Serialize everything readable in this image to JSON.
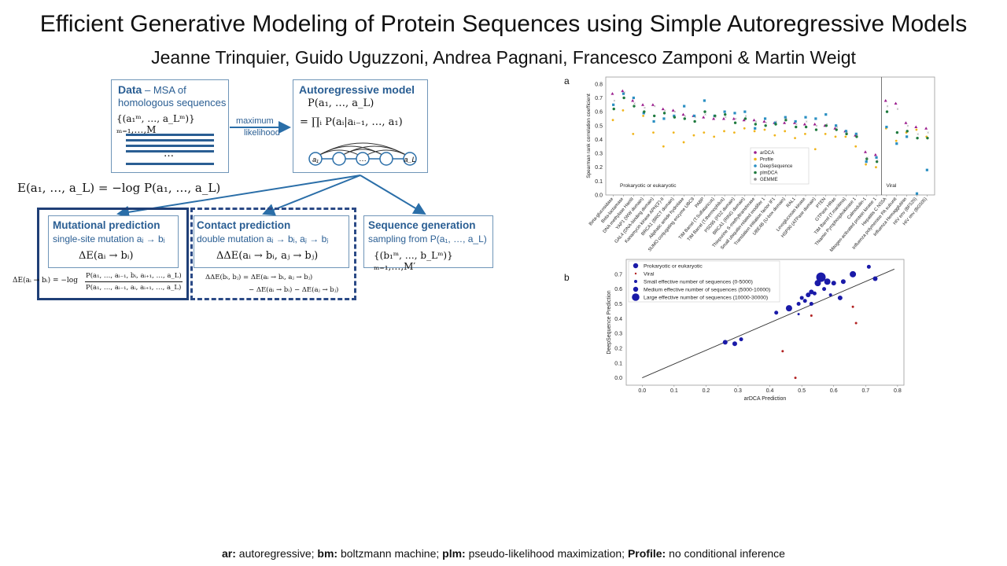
{
  "title": "Efficient Generative Modeling of Protein Sequences using Simple Autoregressive Models",
  "authors": "Jeanne Trinquier, Guido Uguzzoni, Andrea Pagnani, Francesco Zamponi & Martin Weigt",
  "diagram": {
    "data_box": {
      "title": "Data",
      "subtitle": "– MSA of",
      "line2": "homologous sequences",
      "formula": "{(a₁ᵐ, …, a_Lᵐ)}ₘ₌₁,…,M",
      "dots": "…"
    },
    "arrow_label_1": "maximum",
    "arrow_label_2": "likelihood",
    "ar_box": {
      "title": "Autoregressive model",
      "formula1": "P(a₁, …, a_L)",
      "formula2": "= ∏ᵢ P(aᵢ|aᵢ₋₁, …, a₁)",
      "node_first": "a₁",
      "node_last": "a_L",
      "node_dots": "…"
    },
    "energy": "E(a₁, …, a_L) = −log P(a₁, …, a_L)",
    "mut_box": {
      "title": "Mutational prediction",
      "subtitle": "single-site mutation aᵢ → bᵢ",
      "formula": "ΔE(aᵢ → bᵢ)",
      "eq_lhs": "ΔE(aᵢ → bᵢ) = −log",
      "eq_num": "P(a₁, …, aᵢ₋₁, bᵢ, aᵢ₊₁, …, a_L)",
      "eq_den": "P(a₁, …, aᵢ₋₁, aᵢ, aᵢ₊₁, …, a_L)"
    },
    "contact_box": {
      "title": "Contact prediction",
      "subtitle": "double mutation aᵢ → bᵢ, aⱼ → bⱼ",
      "formula": "ΔΔE(aᵢ → bᵢ, aⱼ → bⱼ)",
      "eq1": "ΔΔE(bᵢ, bⱼ) = ΔE(aᵢ → bᵢ, aⱼ → bⱼ)",
      "eq2": "− ΔE(aᵢ → bᵢ) − ΔE(aⱼ → bⱼ)"
    },
    "gen_box": {
      "title": "Sequence generation",
      "subtitle": "sampling from P(a₁, …, a_L)",
      "formula": "{(b₁ᵐ, …, b_Lᵐ)}ₘ₌₁,…,M′"
    }
  },
  "panel_a_letter": "a",
  "panel_b_letter": "b",
  "footer": {
    "k1": "ar:",
    "v1": " autoregressive; ",
    "k2": "bm:",
    "v2": " boltzmann machine; ",
    "k3": "plm:",
    "v3": " pseudo-likelihood maximization; ",
    "k4": "Profile:",
    "v4": " no conditional inference"
  },
  "chart_data": [
    {
      "type": "scatter",
      "ylabel": "Spearman rank correlation coefficient",
      "ylim": [
        0,
        0.85
      ],
      "yticks": [
        "0.0",
        "0.1",
        "0.2",
        "0.3",
        "0.4",
        "0.5",
        "0.6",
        "0.7",
        "0.8"
      ],
      "region_labels": [
        "Prokaryotic or eukaryotic",
        "Viral"
      ],
      "categories": [
        "Beta-glucosidase",
        "Beta-lactamase",
        "DNA methylase HaeIII",
        "YAP1 (WW domain)",
        "GAL4 (DNA-binding domain)",
        "Kanamycin kinase APH(3')-II",
        "BRCA1 (BRCT domain)",
        "Aliphatic amide hydrolase",
        "SUMO conjugating enzyme UBC9",
        "PABP",
        "TIM Barrel (T.Sulfataricus)",
        "TIM Barrel (T.thermophilus)",
        "PSD95 (PDZ domain)",
        "BRCA1 (RING domain)",
        "Thiopurine S-methyltransferase",
        "Small ubiquitin-related modifier 1",
        "Translation initiation factor IF1",
        "UBE4B (U-box domain)",
        "RAL1",
        "Levoglucosan kinase",
        "HSP90 (ATPase domain)",
        "PTEN",
        "GTPase HRas",
        "TIM Barrel (T.maritima)",
        "Thiamin Pyrophosphokinase 1",
        "Calmodulin-1",
        "Mitogen-activated protein kinase 1",
        "Hepatitis C NS5A",
        "Influenza polymerase PA subunit",
        "Influenza Hemagglutinin",
        "HIV env (BF520)",
        "HIV env (BG505)"
      ],
      "series": [
        {
          "name": "arDCA",
          "color": "#9b1d8e",
          "values": [
            0.73,
            0.75,
            0.68,
            0.65,
            0.65,
            0.62,
            0.61,
            0.58,
            0.57,
            0.56,
            0.55,
            0.55,
            0.55,
            0.54,
            0.54,
            0.53,
            0.52,
            0.52,
            0.52,
            0.51,
            0.51,
            0.5,
            0.48,
            0.46,
            0.43,
            0.31,
            0.29,
            0.68,
            0.66,
            0.52,
            0.49,
            0.48
          ]
        },
        {
          "name": "Profile",
          "color": "#f0b51c",
          "values": [
            0.54,
            0.61,
            0.44,
            0.57,
            0.45,
            0.35,
            0.45,
            0.38,
            0.43,
            0.45,
            0.42,
            0.46,
            0.45,
            0.48,
            0.46,
            0.47,
            0.43,
            0.46,
            0.41,
            0.44,
            0.33,
            0.44,
            0.42,
            0.42,
            0.35,
            0.22,
            0.2,
            0.48,
            0.39,
            0.45,
            0.47,
            0.42
          ]
        },
        {
          "name": "DeepSequence",
          "color": "#2a8fc2",
          "values": [
            0.65,
            0.73,
            0.7,
            0.59,
            0.53,
            0.55,
            0.57,
            0.64,
            0.57,
            0.68,
            0.57,
            0.6,
            0.59,
            0.6,
            0.48,
            0.55,
            0.52,
            0.56,
            0.53,
            0.56,
            0.55,
            0.58,
            0.5,
            0.46,
            0.44,
            0.24,
            0.27,
            0.49,
            0.37,
            0.42,
            0.01,
            0.18
          ]
        },
        {
          "name": "plmDCA",
          "color": "#1f7a3e",
          "values": [
            0.62,
            0.7,
            0.64,
            0.6,
            0.57,
            0.59,
            0.56,
            0.55,
            0.53,
            0.6,
            0.57,
            0.58,
            0.52,
            0.55,
            0.51,
            0.5,
            0.51,
            0.54,
            0.49,
            0.49,
            0.47,
            0.5,
            0.47,
            0.44,
            0.42,
            0.26,
            0.24,
            0.6,
            0.45,
            0.46,
            0.41,
            0.41
          ]
        },
        {
          "name": "GEMME",
          "color": "#8a8a8a",
          "values": [
            0.68,
            0.74,
            0.66,
            0.63,
            0.64,
            0.61,
            0.6,
            0.57,
            0.56,
            0.58,
            0.56,
            0.56,
            0.55,
            0.57,
            0.53,
            0.52,
            0.53,
            0.55,
            0.51,
            0.53,
            0.5,
            0.51,
            0.49,
            0.45,
            0.43,
            0.27,
            0.25,
            0.64,
            0.62,
            0.5,
            0.44,
            0.45
          ]
        }
      ],
      "legend": "center"
    },
    {
      "type": "scatter",
      "xlabel": "arDCA Prediction",
      "ylabel": "DeepSequence Prediction",
      "xlim": [
        -0.05,
        0.82
      ],
      "ylim": [
        -0.05,
        0.8
      ],
      "xticks": [
        "0.0",
        "0.1",
        "0.2",
        "0.3",
        "0.4",
        "0.5",
        "0.6",
        "0.7",
        "0.8"
      ],
      "yticks": [
        "0.0",
        "0.1",
        "0.2",
        "0.3",
        "0.4",
        "0.5",
        "0.6",
        "0.7"
      ],
      "diagonal": true,
      "legend": "top-left",
      "legend_entries": [
        {
          "label": "Prokaryotic or eukaryotic",
          "color": "#1a1aa8",
          "size": 4
        },
        {
          "label": "Viral",
          "color": "#b22222",
          "size": 1.5
        },
        {
          "label": "Small effective number of sequences (0-5000)",
          "color": "#1a1aa8",
          "size": 2.5
        },
        {
          "label": "Medium effective number of sequences (5000-10000)",
          "color": "#1a1aa8",
          "size": 4
        },
        {
          "label": "Large effective number of sequences (10000-30000)",
          "color": "#1a1aa8",
          "size": 6
        }
      ],
      "points": [
        {
          "x": 0.26,
          "y": 0.24,
          "s": 3,
          "c": "#1a1aa8"
        },
        {
          "x": 0.29,
          "y": 0.23,
          "s": 3,
          "c": "#1a1aa8"
        },
        {
          "x": 0.31,
          "y": 0.26,
          "s": 2.5,
          "c": "#1a1aa8"
        },
        {
          "x": 0.42,
          "y": 0.44,
          "s": 2.5,
          "c": "#1a1aa8"
        },
        {
          "x": 0.46,
          "y": 0.47,
          "s": 4,
          "c": "#1a1aa8"
        },
        {
          "x": 0.49,
          "y": 0.5,
          "s": 2.5,
          "c": "#1a1aa8"
        },
        {
          "x": 0.5,
          "y": 0.54,
          "s": 2.5,
          "c": "#1a1aa8"
        },
        {
          "x": 0.51,
          "y": 0.52,
          "s": 2.5,
          "c": "#1a1aa8"
        },
        {
          "x": 0.52,
          "y": 0.56,
          "s": 3,
          "c": "#1a1aa8"
        },
        {
          "x": 0.53,
          "y": 0.58,
          "s": 3,
          "c": "#1a1aa8"
        },
        {
          "x": 0.54,
          "y": 0.57,
          "s": 2.5,
          "c": "#1a1aa8"
        },
        {
          "x": 0.55,
          "y": 0.64,
          "s": 4,
          "c": "#1a1aa8"
        },
        {
          "x": 0.56,
          "y": 0.68,
          "s": 6,
          "c": "#1a1aa8"
        },
        {
          "x": 0.57,
          "y": 0.6,
          "s": 2.5,
          "c": "#1a1aa8"
        },
        {
          "x": 0.58,
          "y": 0.65,
          "s": 4,
          "c": "#1a1aa8"
        },
        {
          "x": 0.6,
          "y": 0.64,
          "s": 3,
          "c": "#1a1aa8"
        },
        {
          "x": 0.62,
          "y": 0.54,
          "s": 3,
          "c": "#1a1aa8"
        },
        {
          "x": 0.63,
          "y": 0.65,
          "s": 3,
          "c": "#1a1aa8"
        },
        {
          "x": 0.66,
          "y": 0.7,
          "s": 4,
          "c": "#1a1aa8"
        },
        {
          "x": 0.71,
          "y": 0.75,
          "s": 2.5,
          "c": "#1a1aa8"
        },
        {
          "x": 0.73,
          "y": 0.67,
          "s": 3,
          "c": "#1a1aa8"
        },
        {
          "x": 0.53,
          "y": 0.5,
          "s": 2.5,
          "c": "#1a1aa8"
        },
        {
          "x": 0.49,
          "y": 0.43,
          "s": 1.5,
          "c": "#1a1aa8"
        },
        {
          "x": 0.59,
          "y": 0.56,
          "s": 2,
          "c": "#1a1aa8"
        },
        {
          "x": 0.44,
          "y": 0.18,
          "s": 1.5,
          "c": "#b22222"
        },
        {
          "x": 0.48,
          "y": 0.0,
          "s": 1.5,
          "c": "#b22222"
        },
        {
          "x": 0.53,
          "y": 0.42,
          "s": 1.5,
          "c": "#b22222"
        },
        {
          "x": 0.66,
          "y": 0.48,
          "s": 1.5,
          "c": "#b22222"
        },
        {
          "x": 0.67,
          "y": 0.37,
          "s": 1.5,
          "c": "#b22222"
        }
      ]
    }
  ]
}
